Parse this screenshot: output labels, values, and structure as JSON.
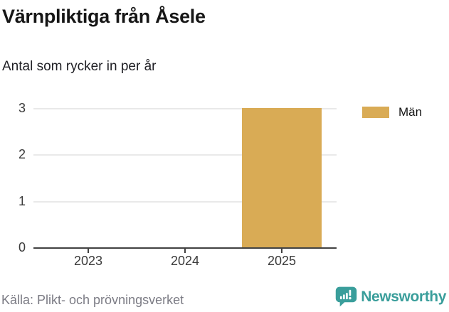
{
  "chart_data": {
    "type": "bar",
    "title": "Värnpliktiga från Åsele",
    "subtitle": "Antal som rycker in per år",
    "categories": [
      "2023",
      "2024",
      "2025"
    ],
    "series": [
      {
        "name": "Män",
        "values": [
          0,
          0,
          3
        ],
        "color": "#d9ab55"
      }
    ],
    "ylim": [
      0,
      3
    ],
    "yticks": [
      0,
      1,
      2,
      3
    ],
    "grid": "horizontal-light",
    "legend_position": "right-top"
  },
  "footer": {
    "source": "Källa: Plikt- och prövningsverket",
    "brand": "Newsworthy"
  },
  "colors": {
    "bar": "#d9ab55",
    "axis": "#424242",
    "grid": "#e9e9e9",
    "tick_text": "#3b3b3b",
    "title_text": "#161616",
    "source_text": "#7b7b84",
    "brand_teal": "#3a9e9b",
    "background": "#ffffff"
  }
}
